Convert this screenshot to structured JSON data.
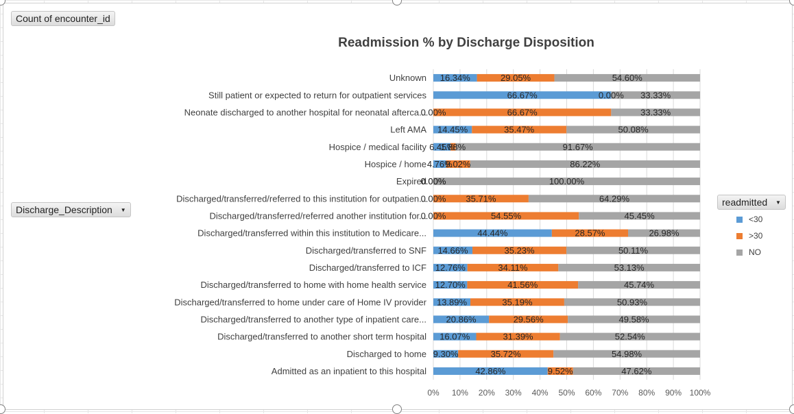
{
  "pivot": {
    "value_field": "Count of encounter_id",
    "row_field": "Discharge_Description",
    "legend_field": "readmitted"
  },
  "colors": {
    "lt30": "#5b9bd5",
    "gt30": "#ed7d31",
    "no": "#a5a5a5"
  },
  "chart_data": {
    "type": "bar",
    "orientation": "horizontal",
    "stacked": "100%",
    "title": "Readmission % by Discharge Disposition",
    "categories": [
      "Unknown",
      "Still patient or expected to return for outpatient services",
      "Neonate discharged to another hospital for neonatal afterca...",
      "Left AMA",
      "Hospice / medical facility",
      "Hospice / home",
      "Expired",
      "Discharged/transferred/referred to this institution for outpatien...",
      "Discharged/transferred/referred another institution for...",
      "Discharged/transferred within this institution to Medicare...",
      "Discharged/transferred to SNF",
      "Discharged/transferred to ICF",
      "Discharged/transferred to home with home health service",
      "Discharged/transferred to home under care of Home IV provider",
      "Discharged/transferred to another type of inpatient care...",
      "Discharged/transferred to another short term hospital",
      "Discharged to home",
      "Admitted as an inpatient to this hospital"
    ],
    "series": [
      {
        "name": "<30",
        "values": [
          16.34,
          66.67,
          0.0,
          14.45,
          6.45,
          4.76,
          0.0,
          0.0,
          0.0,
          44.44,
          14.66,
          12.76,
          12.7,
          13.89,
          20.86,
          16.07,
          9.3,
          42.86
        ],
        "labels": [
          "16.34%",
          "66.67%",
          "0.00%",
          "14.45%",
          "6.45%",
          "4.76%",
          "0.00%",
          "0.00%",
          "0.00%",
          "44.44%",
          "14.66%",
          "12.76%",
          "12.70%",
          "13.89%",
          "20.86%",
          "16.07%",
          "9.30%",
          "42.86%"
        ]
      },
      {
        "name": ">30",
        "values": [
          29.05,
          0.0,
          66.67,
          35.47,
          1.88,
          9.02,
          0.0,
          35.71,
          54.55,
          28.57,
          35.23,
          34.11,
          41.56,
          35.19,
          29.56,
          31.39,
          35.72,
          9.52
        ],
        "labels": [
          "29.05%",
          "0.00%",
          "66.67%",
          "35.47%",
          "1.88%",
          "9.02%",
          "0.00%",
          "35.71%",
          "54.55%",
          "28.57%",
          "35.23%",
          "34.11%",
          "41.56%",
          "35.19%",
          "29.56%",
          "31.39%",
          "35.72%",
          "9.52%"
        ]
      },
      {
        "name": "NO",
        "values": [
          54.6,
          33.33,
          33.33,
          50.08,
          91.67,
          86.22,
          100.0,
          64.29,
          45.45,
          26.98,
          50.11,
          53.13,
          45.74,
          50.93,
          49.58,
          52.54,
          54.98,
          47.62
        ],
        "labels": [
          "54.60%",
          "33.33%",
          "33.33%",
          "50.08%",
          "91.67%",
          "86.22%",
          "100.00%",
          "64.29%",
          "45.45%",
          "26.98%",
          "50.11%",
          "53.13%",
          "45.74%",
          "50.93%",
          "49.58%",
          "52.54%",
          "54.98%",
          "47.62%"
        ]
      }
    ],
    "xticks": [
      "0%",
      "10%",
      "20%",
      "30%",
      "40%",
      "50%",
      "60%",
      "70%",
      "80%",
      "90%",
      "100%"
    ],
    "xlim": [
      0,
      100
    ],
    "grid": true,
    "legend_position": "right"
  }
}
